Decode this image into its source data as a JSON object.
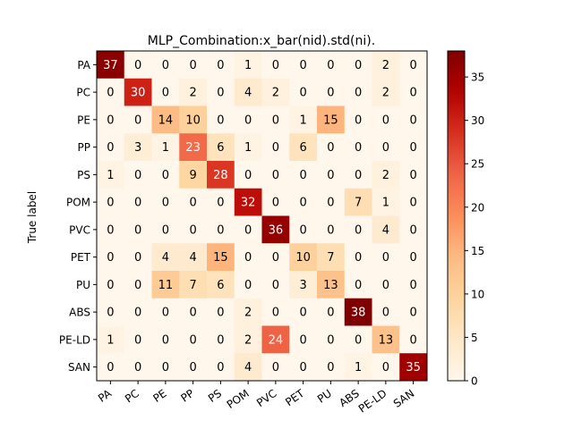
{
  "chart_data": {
    "type": "heatmap",
    "title": "MLP_Combination:x_bar(nid).std(ni).",
    "ylabel": "True label",
    "xlabel": "",
    "row_labels": [
      "PA",
      "PC",
      "PE",
      "PP",
      "PS",
      "POM",
      "PVC",
      "PET",
      "PU",
      "ABS",
      "PE-LD",
      "SAN"
    ],
    "col_labels": [
      "PA",
      "PC",
      "PE",
      "PP",
      "PS",
      "POM",
      "PVC",
      "PET",
      "PU",
      "ABS",
      "PE-LD",
      "SAN"
    ],
    "matrix": [
      [
        37,
        0,
        0,
        0,
        0,
        1,
        0,
        0,
        0,
        0,
        2,
        0
      ],
      [
        0,
        30,
        0,
        2,
        0,
        4,
        2,
        0,
        0,
        0,
        2,
        0
      ],
      [
        0,
        0,
        14,
        10,
        0,
        0,
        0,
        1,
        15,
        0,
        0,
        0
      ],
      [
        0,
        3,
        1,
        23,
        6,
        1,
        0,
        6,
        0,
        0,
        0,
        0
      ],
      [
        1,
        0,
        0,
        9,
        28,
        0,
        0,
        0,
        0,
        0,
        2,
        0
      ],
      [
        0,
        0,
        0,
        0,
        0,
        32,
        0,
        0,
        0,
        7,
        1,
        0
      ],
      [
        0,
        0,
        0,
        0,
        0,
        0,
        36,
        0,
        0,
        0,
        4,
        0
      ],
      [
        0,
        0,
        4,
        4,
        15,
        0,
        0,
        10,
        7,
        0,
        0,
        0
      ],
      [
        0,
        0,
        11,
        7,
        6,
        0,
        0,
        3,
        13,
        0,
        0,
        0
      ],
      [
        0,
        0,
        0,
        0,
        0,
        2,
        0,
        0,
        0,
        38,
        0,
        0
      ],
      [
        1,
        0,
        0,
        0,
        0,
        2,
        24,
        0,
        0,
        0,
        13,
        0
      ],
      [
        0,
        0,
        0,
        0,
        0,
        4,
        0,
        0,
        0,
        1,
        0,
        35
      ]
    ],
    "colorbar": {
      "range": [
        0,
        38
      ],
      "ticks": [
        0,
        5,
        10,
        15,
        20,
        25,
        30,
        35
      ],
      "colormap": "OrRd"
    },
    "grid": false
  }
}
